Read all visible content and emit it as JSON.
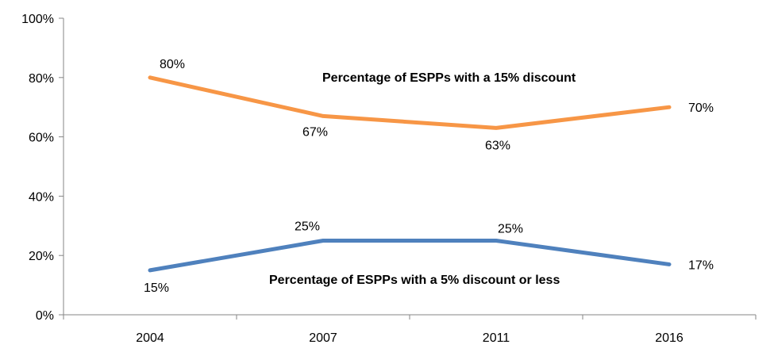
{
  "chart_data": {
    "type": "line",
    "categories": [
      "2004",
      "2007",
      "2011",
      "2016"
    ],
    "ylim": [
      0,
      100
    ],
    "yticks": [
      0,
      20,
      40,
      60,
      80,
      100
    ],
    "ytick_labels": [
      "0%",
      "20%",
      "40%",
      "60%",
      "80%",
      "100%"
    ],
    "grid": false,
    "series": [
      {
        "annotation": "Percentage of ESPPs with a 15% discount",
        "values": [
          80,
          67,
          63,
          70
        ],
        "labels": [
          "80%",
          "67%",
          "63%",
          "70%"
        ],
        "color": "#F79646"
      },
      {
        "annotation": "Percentage of ESPPs with a 5% discount or less",
        "values": [
          15,
          25,
          25,
          17
        ],
        "labels": [
          "15%",
          "25%",
          "25%",
          "17%"
        ],
        "color": "#4F81BD"
      }
    ]
  }
}
